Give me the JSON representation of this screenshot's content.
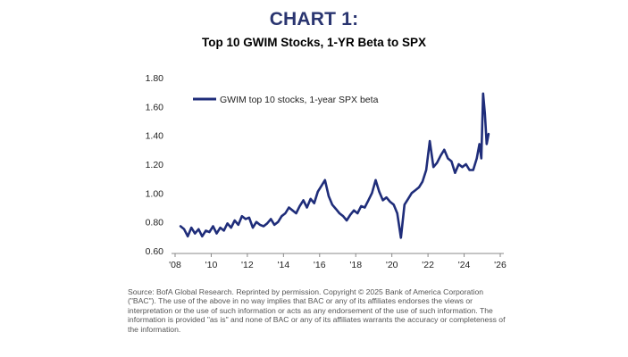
{
  "heading": "CHART 1:",
  "subtitle": "Top 10 GWIM Stocks, 1-YR Beta to SPX",
  "source": "Source: BofA Global Research. Reprinted by permission. Copyright © 2025 Bank of America Corporation (\"BAC\"). The use of the above in no way implies that BAC or any of its affiliates endorses the views or interpretation or the use of such information or acts as any endorsement of the use of such information. The information is provided \"as is\" and none of BAC or any of its affiliates warrants the accuracy or completeness of the information.",
  "colors": {
    "series": "#1f2d7a",
    "heading": "#2a3570"
  },
  "chart_data": {
    "type": "line",
    "title": "Top 10 GWIM Stocks, 1-YR Beta to SPX",
    "xlabel": "",
    "ylabel": "",
    "grid": false,
    "legend_position": "top-left",
    "xlim": [
      2008,
      2026
    ],
    "ylim": [
      0.6,
      1.8
    ],
    "yticks": [
      0.6,
      0.8,
      1.0,
      1.2,
      1.4,
      1.6,
      1.8
    ],
    "ytick_labels": [
      "0.60",
      "0.80",
      "1.00",
      "1.20",
      "1.40",
      "1.60",
      "1.80"
    ],
    "xticks": [
      2008,
      2010,
      2012,
      2014,
      2016,
      2018,
      2020,
      2022,
      2024,
      2026
    ],
    "xtick_labels": [
      "'08",
      "'10",
      "'12",
      "'14",
      "'16",
      "'18",
      "'20",
      "'22",
      "'24",
      "'26"
    ],
    "series": [
      {
        "name": "GWIM top 10 stocks, 1-year SPX beta",
        "x": [
          2008.3,
          2008.5,
          2008.7,
          2008.9,
          2009.1,
          2009.3,
          2009.5,
          2009.7,
          2009.9,
          2010.1,
          2010.3,
          2010.5,
          2010.7,
          2010.9,
          2011.1,
          2011.3,
          2011.5,
          2011.7,
          2011.9,
          2012.1,
          2012.3,
          2012.5,
          2012.7,
          2012.9,
          2013.1,
          2013.3,
          2013.5,
          2013.7,
          2013.9,
          2014.1,
          2014.3,
          2014.5,
          2014.7,
          2014.9,
          2015.1,
          2015.3,
          2015.5,
          2015.7,
          2015.9,
          2016.1,
          2016.3,
          2016.5,
          2016.7,
          2016.9,
          2017.1,
          2017.3,
          2017.5,
          2017.7,
          2017.9,
          2018.1,
          2018.3,
          2018.5,
          2018.7,
          2018.9,
          2019.1,
          2019.3,
          2019.5,
          2019.7,
          2019.9,
          2020.1,
          2020.3,
          2020.5,
          2020.7,
          2020.9,
          2021.1,
          2021.3,
          2021.5,
          2021.7,
          2021.9,
          2022.1,
          2022.3,
          2022.5,
          2022.7,
          2022.9,
          2023.1,
          2023.3,
          2023.5,
          2023.7,
          2023.9,
          2024.1,
          2024.3,
          2024.5,
          2024.7,
          2024.85,
          2024.95,
          2025.05,
          2025.15,
          2025.25,
          2025.35
        ],
        "y": [
          0.77,
          0.75,
          0.7,
          0.76,
          0.72,
          0.75,
          0.7,
          0.74,
          0.73,
          0.77,
          0.72,
          0.76,
          0.74,
          0.79,
          0.76,
          0.81,
          0.78,
          0.84,
          0.82,
          0.83,
          0.76,
          0.8,
          0.78,
          0.77,
          0.79,
          0.82,
          0.78,
          0.8,
          0.84,
          0.86,
          0.9,
          0.88,
          0.86,
          0.91,
          0.95,
          0.9,
          0.96,
          0.93,
          1.01,
          1.05,
          1.09,
          0.98,
          0.92,
          0.89,
          0.86,
          0.84,
          0.81,
          0.85,
          0.88,
          0.86,
          0.91,
          0.9,
          0.95,
          1.0,
          1.09,
          1.01,
          0.95,
          0.97,
          0.94,
          0.92,
          0.86,
          0.69,
          0.92,
          0.96,
          1.0,
          1.02,
          1.04,
          1.08,
          1.16,
          1.36,
          1.18,
          1.21,
          1.26,
          1.3,
          1.24,
          1.22,
          1.14,
          1.2,
          1.18,
          1.2,
          1.16,
          1.16,
          1.24,
          1.34,
          1.24,
          1.69,
          1.55,
          1.34,
          1.41
        ]
      }
    ]
  }
}
